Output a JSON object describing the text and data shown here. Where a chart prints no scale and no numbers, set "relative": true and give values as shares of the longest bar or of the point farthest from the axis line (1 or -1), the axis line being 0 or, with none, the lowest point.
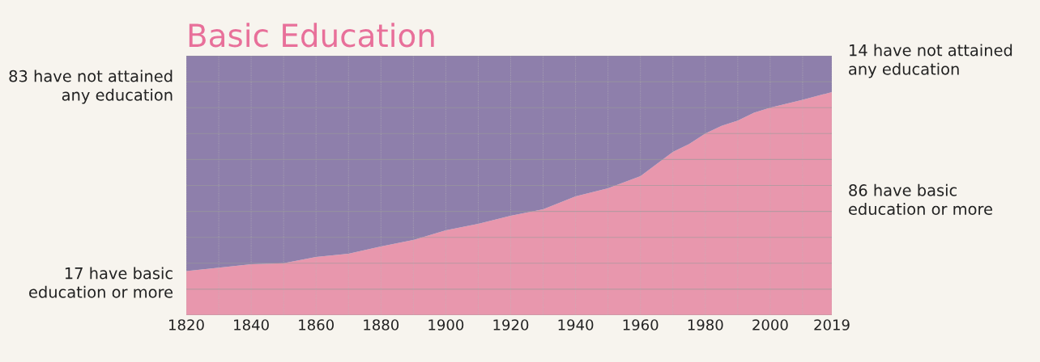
{
  "chart_data": {
    "type": "area",
    "title": "Basic Education",
    "stacked": true,
    "relative": true,
    "x": [
      1820,
      1840,
      1850,
      1860,
      1870,
      1880,
      1890,
      1900,
      1910,
      1920,
      1930,
      1940,
      1950,
      1960,
      1970,
      1975,
      1980,
      1985,
      1990,
      1995,
      2000,
      2010,
      2019
    ],
    "series": [
      {
        "color": "#e897ad",
        "values": [
          0.17,
          0.196,
          0.2,
          0.224,
          0.237,
          0.265,
          0.29,
          0.327,
          0.352,
          0.383,
          0.408,
          0.458,
          0.489,
          0.536,
          0.629,
          0.66,
          0.7,
          0.73,
          0.75,
          0.78,
          0.8,
          0.83,
          0.86
        ]
      },
      {
        "color": "#8e7fab",
        "values": [
          0.83,
          0.804,
          0.8,
          0.776,
          0.763,
          0.735,
          0.71,
          0.673,
          0.648,
          0.617,
          0.592,
          0.542,
          0.511,
          0.464,
          0.371,
          0.34,
          0.3,
          0.27,
          0.25,
          0.22,
          0.2,
          0.17,
          0.14
        ]
      }
    ],
    "xlim": [
      1820,
      2019
    ],
    "xticks": [
      1820,
      {
        "value": 1830,
        "label": null
      },
      1840,
      {
        "value": 1850,
        "label": null
      },
      1860,
      {
        "value": 1870,
        "label": null
      },
      1880,
      {
        "value": 1890,
        "label": null
      },
      1900,
      {
        "value": 1910,
        "label": null
      },
      1920,
      {
        "value": 1930,
        "label": null
      },
      1940,
      {
        "value": 1950,
        "label": null
      },
      1960,
      {
        "value": 1970,
        "label": null
      },
      1980,
      {
        "value": 1990,
        "label": null
      },
      2000,
      {
        "value": 2010,
        "label": null
      },
      2019
    ],
    "tick_labels": "x",
    "grid": true,
    "legend": false,
    "annotations": [
      "83 have not attained\nany education",
      "17 have basic\neducation or more",
      "14 have not attained\nany education",
      "86 have basic\neducation or more"
    ]
  }
}
